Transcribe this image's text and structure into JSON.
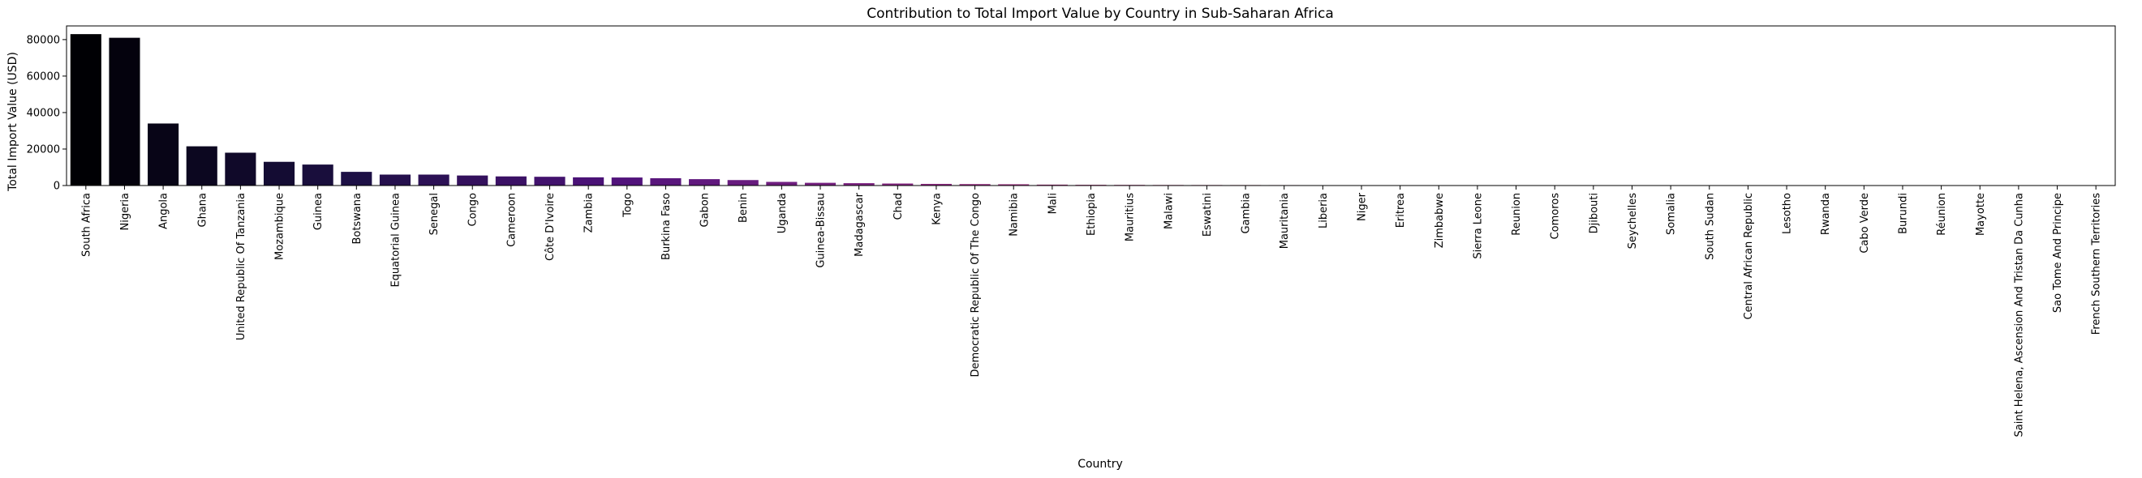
{
  "chart_data": {
    "type": "bar",
    "title": "Contribution to Total Import Value by Country in Sub-Saharan Africa",
    "xlabel": "Country",
    "ylabel": "Total Import Value (USD)",
    "ylim": [
      0,
      87500
    ],
    "yticks": [
      0,
      20000,
      40000,
      60000,
      80000
    ],
    "grid": false,
    "legend": "none",
    "palette": "magma (dark to light)",
    "categories": [
      "South Africa",
      "Nigeria",
      "Angola",
      "Ghana",
      "United Republic Of Tanzania",
      "Mozambique",
      "Guinea",
      "Botswana",
      "Equatorial Guinea",
      "Senegal",
      "Congo",
      "Cameroon",
      "Côte D'Ivoire",
      "Zambia",
      "Togo",
      "Burkina Faso",
      "Gabon",
      "Benin",
      "Uganda",
      "Guinea-Bissau",
      "Madagascar",
      "Chad",
      "Kenya",
      "Democratic Republic Of The Congo",
      "Namibia",
      "Mali",
      "Ethiopia",
      "Mauritius",
      "Malawi",
      "Eswatini",
      "Gambia",
      "Mauritania",
      "Liberia",
      "Niger",
      "Eritrea",
      "Zimbabwe",
      "Sierra Leone",
      "Reunion",
      "Comoros",
      "Djibouti",
      "Seychelles",
      "Somalia",
      "South Sudan",
      "Central African Republic",
      "Lesotho",
      "Rwanda",
      "Cabo Verde",
      "Burundi",
      "Réunion",
      "Mayotte",
      "Saint Helena, Ascension And Tristan Da Cunha",
      "Sao Tome And Principe",
      "French Southern Territories"
    ],
    "values": [
      83000,
      81000,
      34000,
      21500,
      18000,
      13000,
      11500,
      7500,
      6000,
      6000,
      5500,
      5000,
      4800,
      4500,
      4400,
      4000,
      3500,
      3000,
      2000,
      1500,
      1300,
      1100,
      900,
      800,
      700,
      500,
      400,
      350,
      300,
      280,
      260,
      240,
      220,
      200,
      180,
      160,
      140,
      120,
      60,
      50,
      45,
      40,
      35,
      30,
      25,
      20,
      15,
      12,
      10,
      8,
      6,
      4,
      2
    ]
  }
}
